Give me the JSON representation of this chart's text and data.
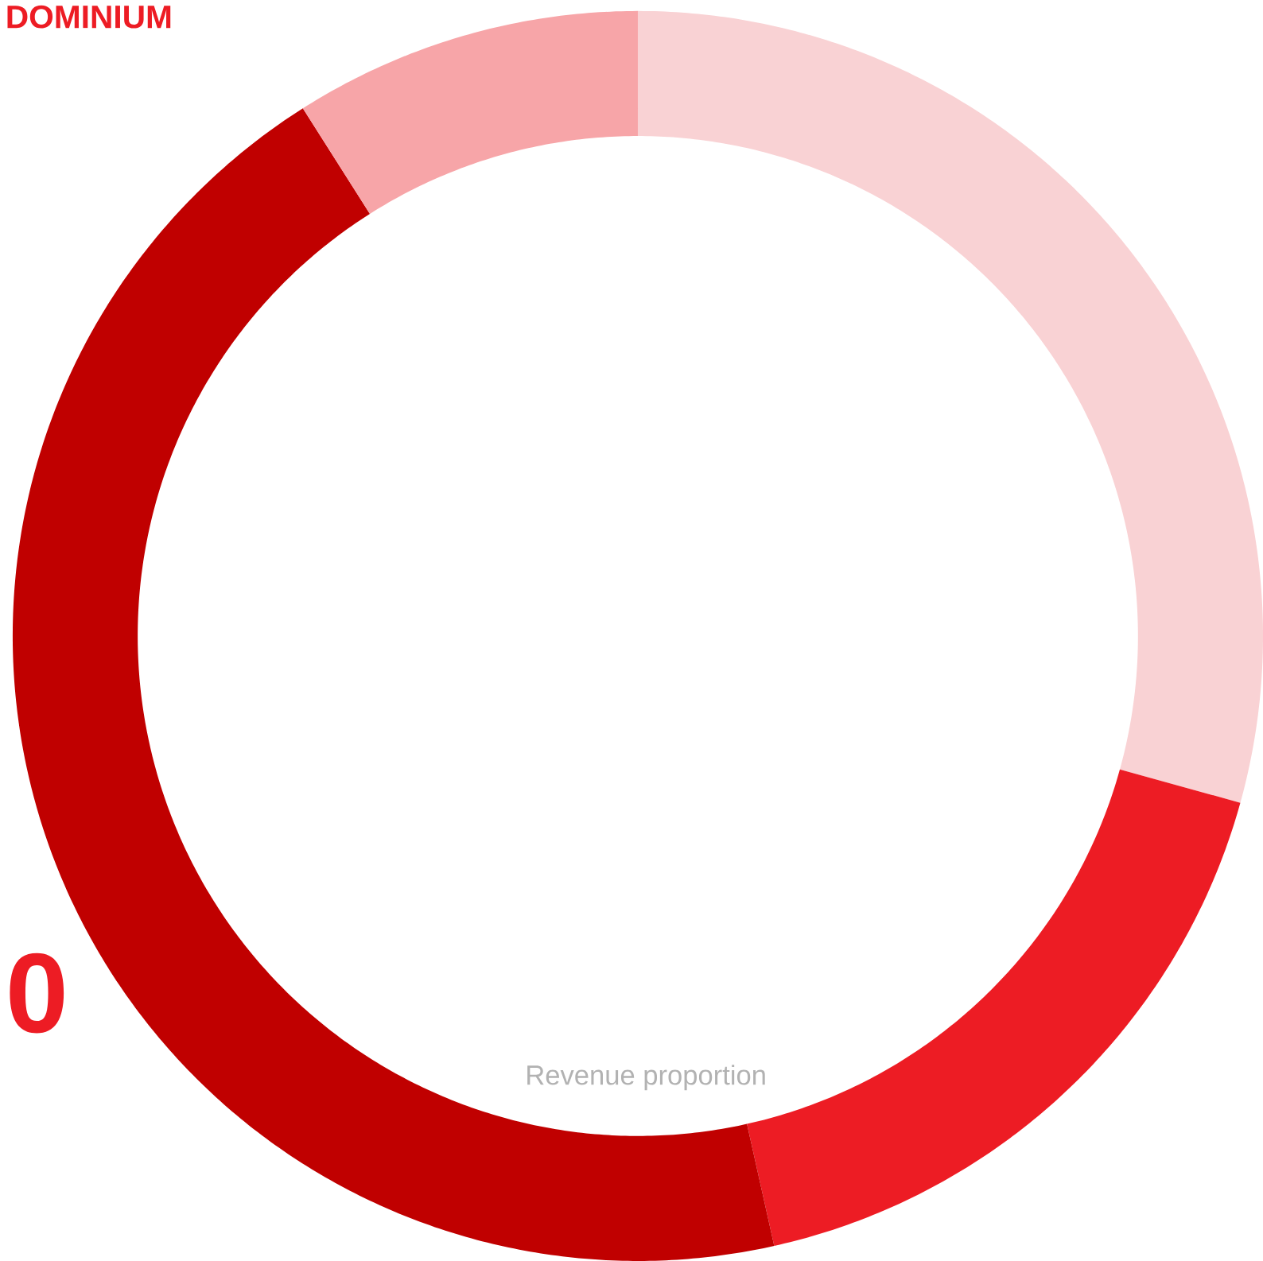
{
  "chart_data": {
    "type": "donut",
    "title": "DOMINIUM",
    "categories": [
      null,
      null,
      null,
      null
    ],
    "values": [
      29.3,
      17.2,
      44.5,
      9.0
    ],
    "colors": [
      "#f9d2d4",
      "#ed1c24",
      "#c00000",
      "#f7a5a8"
    ],
    "annotations": [
      "0",
      "Revenue proportion"
    ]
  }
}
